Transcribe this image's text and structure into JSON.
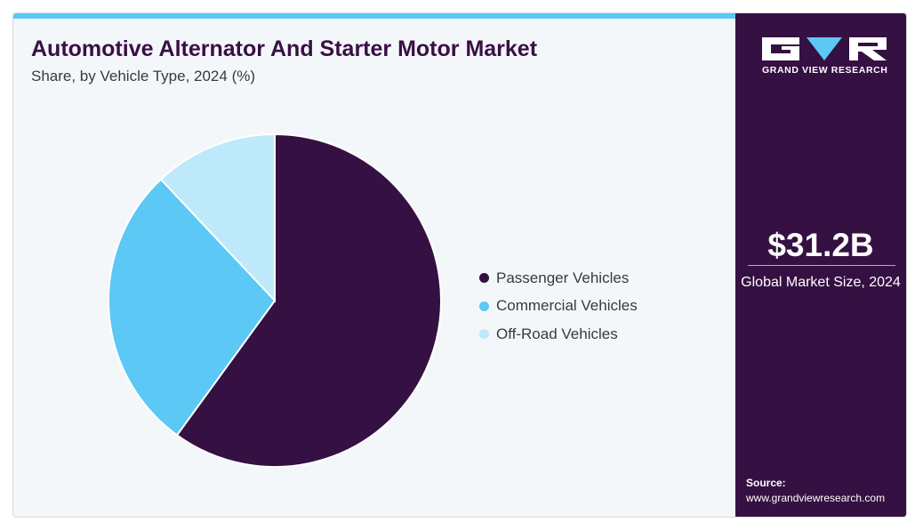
{
  "header": {
    "title": "Automotive Alternator And Starter Motor Market",
    "subtitle": "Share, by Vehicle Type, 2024 (%)"
  },
  "chart_data": {
    "type": "pie",
    "title": "Automotive Alternator And Starter Motor Market",
    "subtitle": "Share, by Vehicle Type, 2024 (%)",
    "categories": [
      "Passenger Vehicles",
      "Commercial Vehicles",
      "Off-Road Vehicles"
    ],
    "values": [
      60,
      28,
      12
    ],
    "colors": [
      "#351042",
      "#5bc8f5",
      "#bde9fa"
    ],
    "start_angle_deg": 0,
    "direction": "clockwise",
    "legend_position": "right"
  },
  "sidebar": {
    "logo_text": "GRAND VIEW RESEARCH",
    "market_size": "$31.2B",
    "market_size_label": "Global Market Size, 2024",
    "source_label": "Source:",
    "source_url": "www.grandviewresearch.com"
  },
  "colors": {
    "brand_dark": "#351042",
    "accent_light_blue": "#5bc8f5",
    "background": "#f4f7fa"
  }
}
